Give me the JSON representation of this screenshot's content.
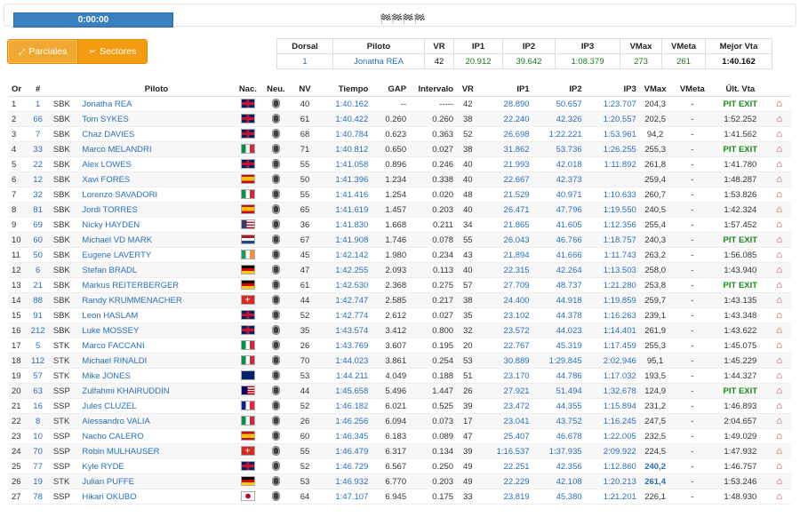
{
  "timer": "0:00:00",
  "flags_icon": "checkered-flags",
  "tabs": [
    {
      "label": "Parciales",
      "icon": "expand-icon"
    },
    {
      "label": "Sectores",
      "icon": "tools-icon"
    }
  ],
  "best": {
    "headers": [
      "Dorsal",
      "Piloto",
      "VR",
      "IP1",
      "IP2",
      "IP3",
      "VMax",
      "VMeta",
      "Mejor Vta"
    ],
    "values": [
      "1",
      "Jonatha REA",
      "42",
      "20.912",
      "39.642",
      "1:08.379",
      "273",
      "261",
      "1:40.162"
    ]
  },
  "table": {
    "headers": [
      "Or",
      "#",
      "",
      "Piloto",
      "Nac.",
      "Neu.",
      "NV",
      "Tiempo",
      "GAP",
      "Intervalo",
      "VR",
      "IP1",
      "IP2",
      "IP3",
      "VMax",
      "VMeta",
      "Últ. Vta",
      ""
    ],
    "rows": [
      [
        "1",
        "1",
        "SBK",
        "Jonatha REA",
        "GBR",
        "40",
        "1:40.162",
        "--",
        "-----",
        "42",
        "28.890",
        "50.657",
        "1:23.707",
        "204,3",
        "-",
        "PIT EXIT"
      ],
      [
        "2",
        "66",
        "SBK",
        "Tom SYKES",
        "GBR",
        "61",
        "1:40.422",
        "0.260",
        "0.260",
        "38",
        "22.240",
        "42.326",
        "1:20.557",
        "202,5",
        "-",
        "1:52.252"
      ],
      [
        "3",
        "7",
        "SBK",
        "Chaz DAVIES",
        "GBR",
        "68",
        "1:40.784",
        "0.623",
        "0.363",
        "52",
        "26.698",
        "1:22.221",
        "1:53.961",
        "94,2",
        "-",
        "1:41.562"
      ],
      [
        "4",
        "33",
        "SBK",
        "Marco MELANDRI",
        "ITA",
        "71",
        "1:40.812",
        "0.650",
        "0.027",
        "38",
        "31.862",
        "53.736",
        "1:26.255",
        "255,3",
        "-",
        "PIT EXIT"
      ],
      [
        "5",
        "22",
        "SBK",
        "Alex LOWES",
        "GBR",
        "55",
        "1:41.058",
        "0.896",
        "0.246",
        "40",
        "21.993",
        "42.018",
        "1:11.892",
        "261,8",
        "-",
        "1:41.780"
      ],
      [
        "6",
        "12",
        "SBK",
        "Xavi FORES",
        "ESP",
        "50",
        "1:41.396",
        "1.234",
        "0.338",
        "40",
        "22.667",
        "42.373",
        "",
        "259,4",
        "-",
        "1:48.287"
      ],
      [
        "7",
        "32",
        "SBK",
        "Lorenzo SAVADORI",
        "ITA",
        "55",
        "1:41.416",
        "1.254",
        "0.020",
        "48",
        "21.529",
        "40.971",
        "1:10.633",
        "260,7",
        "-",
        "1:53.826"
      ],
      [
        "8",
        "81",
        "SBK",
        "Jordi TORRES",
        "ESP",
        "65",
        "1:41.619",
        "1.457",
        "0.203",
        "40",
        "26.471",
        "47.796",
        "1:19.550",
        "240,5",
        "-",
        "1:42.324"
      ],
      [
        "9",
        "69",
        "SBK",
        "Nicky HAYDEN",
        "USA",
        "36",
        "1:41.830",
        "1.668",
        "0.211",
        "34",
        "21.865",
        "41.605",
        "1:12.356",
        "255,4",
        "-",
        "1:57.452"
      ],
      [
        "10",
        "60",
        "SBK",
        "Michael VD MARK",
        "NED",
        "67",
        "1:41.908",
        "1.746",
        "0.078",
        "55",
        "26.043",
        "46.766",
        "1:18.757",
        "240,3",
        "-",
        "PIT EXIT"
      ],
      [
        "11",
        "50",
        "SBK",
        "Eugene LAVERTY",
        "IRL",
        "45",
        "1:42.142",
        "1.980",
        "0.234",
        "43",
        "21.894",
        "41.666",
        "1:11.743",
        "263,2",
        "-",
        "1:56.085"
      ],
      [
        "12",
        "6",
        "SBK",
        "Stefan BRADL",
        "GER",
        "47",
        "1:42.255",
        "2.093",
        "0.113",
        "40",
        "22.315",
        "42.264",
        "1:13.503",
        "258,0",
        "-",
        "1:43.940"
      ],
      [
        "13",
        "21",
        "SBK",
        "Markus REITERBERGER",
        "GER",
        "61",
        "1:42.530",
        "2.368",
        "0.275",
        "57",
        "27.709",
        "48.737",
        "1:21.280",
        "253,8",
        "-",
        "PIT EXIT"
      ],
      [
        "14",
        "88",
        "SBK",
        "Randy KRUMMENACHER",
        "SUI",
        "44",
        "1:42.747",
        "2.585",
        "0.217",
        "38",
        "24.400",
        "44.918",
        "1:19.859",
        "259,7",
        "-",
        "1:43.135"
      ],
      [
        "15",
        "91",
        "SBK",
        "Leon HASLAM",
        "GBR",
        "52",
        "1:42.774",
        "2.612",
        "0.027",
        "35",
        "23.102",
        "44.378",
        "1:16.263",
        "239,1",
        "-",
        "1:43.348"
      ],
      [
        "16",
        "212",
        "SBK",
        "Luke MOSSEY",
        "GBR",
        "35",
        "1:43.574",
        "3.412",
        "0.800",
        "32",
        "23.572",
        "44.023",
        "1:14.401",
        "261,9",
        "-",
        "1:43.622"
      ],
      [
        "17",
        "5",
        "STK",
        "Marco FACCANI",
        "ITA",
        "26",
        "1:43.769",
        "3.607",
        "0.195",
        "20",
        "22.767",
        "45.319",
        "1:17.459",
        "255,3",
        "-",
        "1:45.075"
      ],
      [
        "18",
        "112",
        "STK",
        "Michael RINALDI",
        "ITA",
        "70",
        "1:44.023",
        "3.861",
        "0.254",
        "53",
        "30.889",
        "1:29.845",
        "2:02.946",
        "95,1",
        "-",
        "1:45.229"
      ],
      [
        "19",
        "57",
        "STK",
        "Mike JONES",
        "AUS",
        "53",
        "1:44.211",
        "4.049",
        "0.188",
        "51",
        "23.170",
        "44.786",
        "1:17.032",
        "193,5",
        "-",
        "1:44.327"
      ],
      [
        "20",
        "63",
        "SSP",
        "Zulfahmi KHAIRUDDIN",
        "MAS",
        "44",
        "1:45.658",
        "5.496",
        "1.447",
        "26",
        "27.921",
        "51.494",
        "1:32.678",
        "124,9",
        "-",
        "PIT EXIT"
      ],
      [
        "21",
        "16",
        "SSP",
        "Jules CLUZEL",
        "FRA",
        "52",
        "1:46.182",
        "6.021",
        "0.525",
        "39",
        "23.472",
        "44.355",
        "1:15.894",
        "231,2",
        "-",
        "1:46.893"
      ],
      [
        "22",
        "8",
        "STK",
        "Alessandro VALIA",
        "ITA",
        "26",
        "1:46.256",
        "6.094",
        "0.073",
        "17",
        "23.041",
        "43.752",
        "1:16.245",
        "247,5",
        "-",
        "2:04.657"
      ],
      [
        "23",
        "10",
        "SSP",
        "Nacho CALERO",
        "ESP",
        "60",
        "1:46.345",
        "6.183",
        "0.089",
        "47",
        "25.407",
        "46.678",
        "1:22.005",
        "232,5",
        "-",
        "1:49.029"
      ],
      [
        "24",
        "70",
        "SSP",
        "Robin MULHAUSER",
        "SUI",
        "55",
        "1:46.479",
        "6.317",
        "0.134",
        "39",
        "1:16.537",
        "1:37.935",
        "2:09.922",
        "224,5",
        "-",
        "1:47.932"
      ],
      [
        "25",
        "77",
        "SSP",
        "Kyle RYDE",
        "GBR",
        "52",
        "1:46.729",
        "6.567",
        "0.250",
        "49",
        "22.251",
        "42.356",
        "1:12.860",
        "240,2",
        "-",
        "1:46.757"
      ],
      [
        "26",
        "19",
        "STK",
        "Julian PUFFE",
        "GER",
        "53",
        "1:46.932",
        "6.770",
        "0.203",
        "49",
        "22.229",
        "42.108",
        "1:20.213",
        "261,4",
        "-",
        "1:53.246"
      ],
      [
        "27",
        "78",
        "SSP",
        "Hikari OKUBO",
        "JPN",
        "64",
        "1:47.107",
        "6.945",
        "0.175",
        "33",
        "23.819",
        "45.380",
        "1:21.201",
        "226,1",
        "-",
        "1:48.930"
      ]
    ],
    "bold_vmax_rows": [
      24,
      25
    ]
  }
}
